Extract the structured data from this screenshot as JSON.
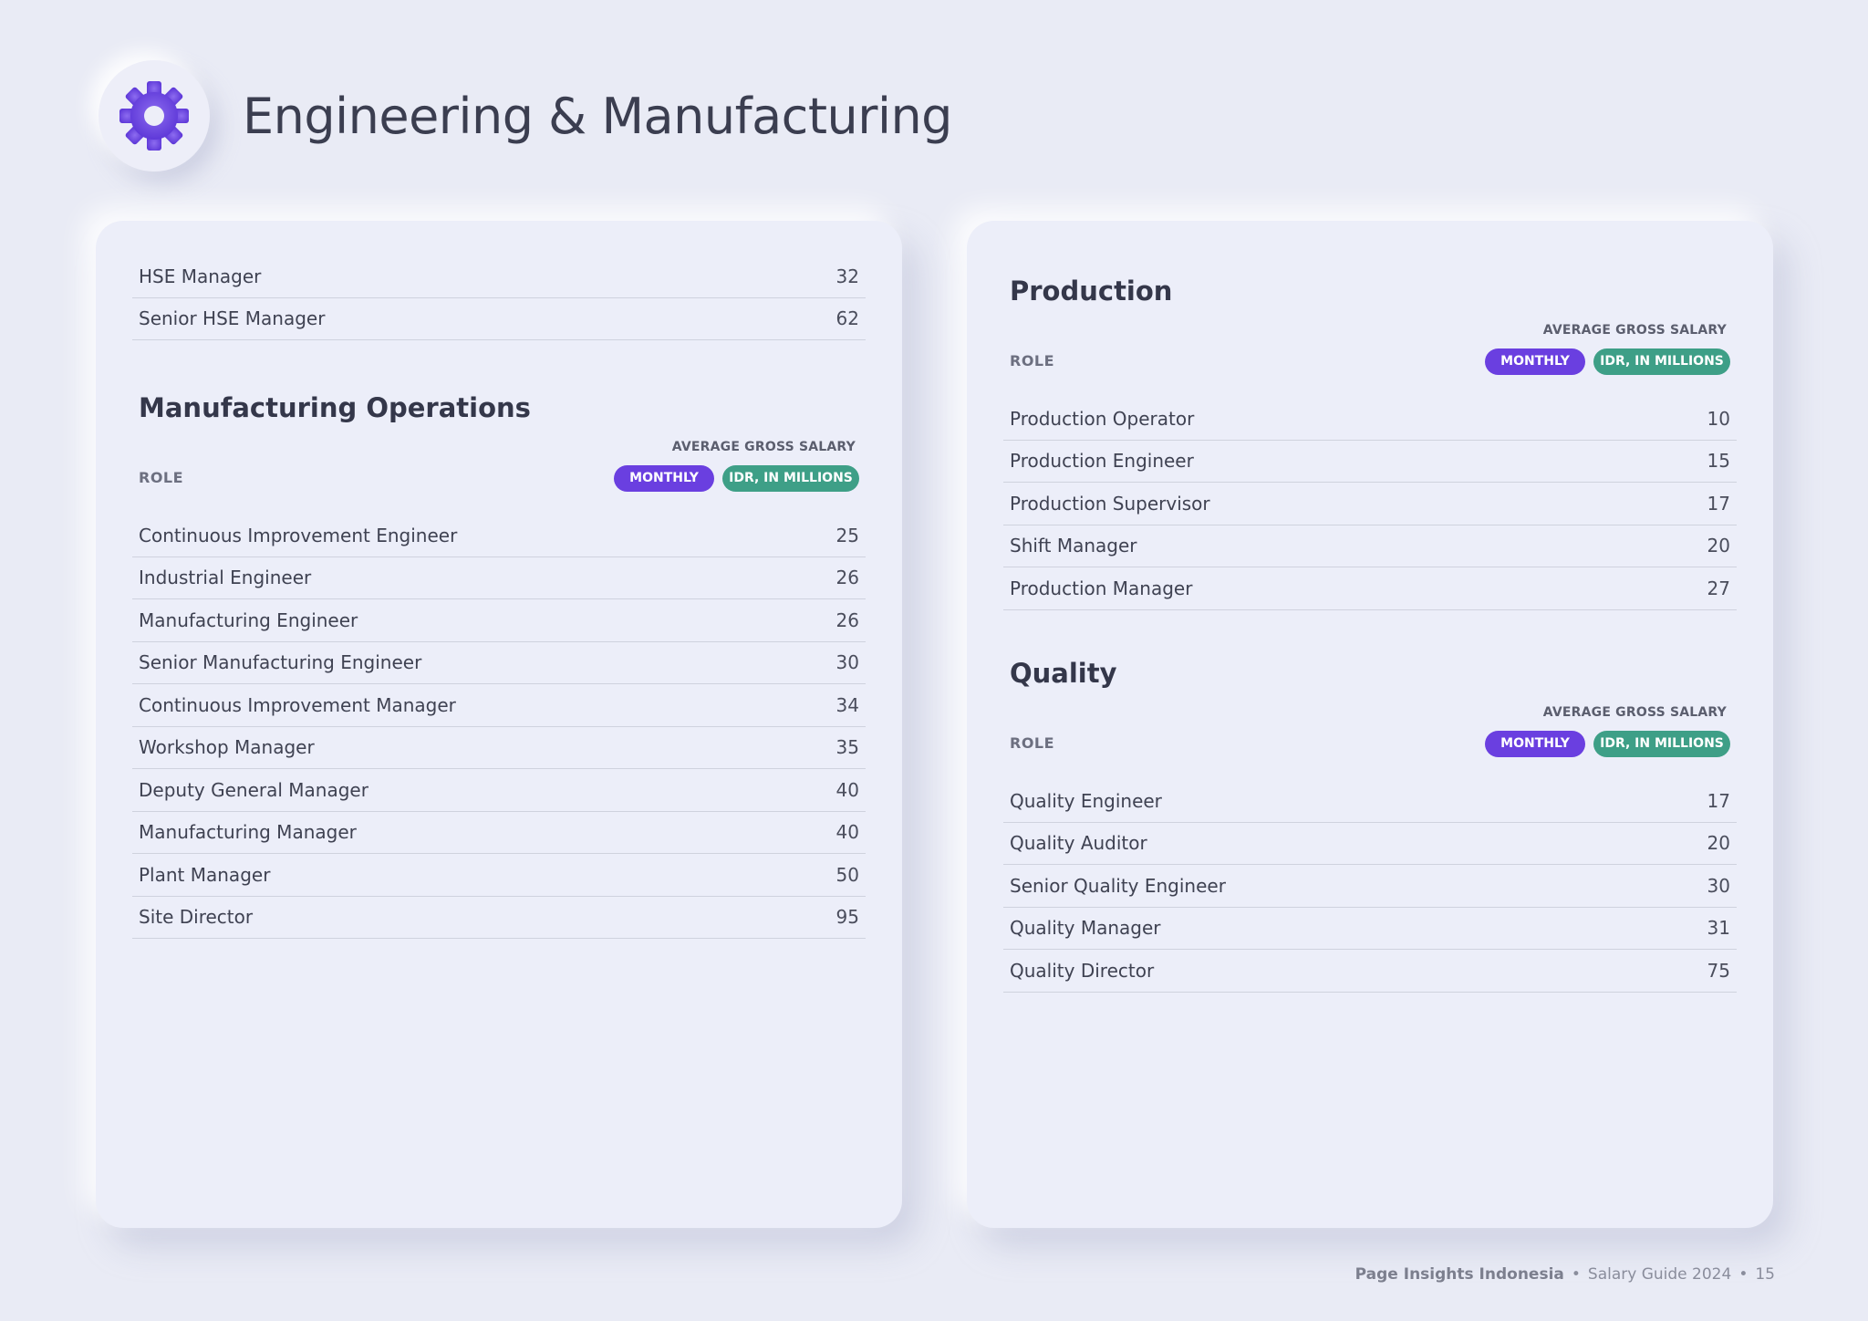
{
  "page": {
    "title": "Engineering & Manufacturing",
    "icon": "gear-icon"
  },
  "colors": {
    "accent_purple": "#6a3fe0",
    "accent_green": "#3e9f87",
    "background": "#e9ebf5"
  },
  "hse": {
    "rows": [
      {
        "role": "HSE Manager",
        "value": "32"
      },
      {
        "role": "Senior HSE Manager",
        "value": "62"
      }
    ]
  },
  "manufacturing": {
    "title": "Manufacturing Operations",
    "role_label": "ROLE",
    "salary_label": "AVERAGE GROSS SALARY",
    "badge_monthly": "MONTHLY",
    "badge_idr": "IDR, IN MILLIONS",
    "rows": [
      {
        "role": "Continuous Improvement Engineer",
        "value": "25"
      },
      {
        "role": "Industrial Engineer",
        "value": "26"
      },
      {
        "role": "Manufacturing Engineer",
        "value": "26"
      },
      {
        "role": "Senior Manufacturing Engineer",
        "value": "30"
      },
      {
        "role": "Continuous Improvement Manager",
        "value": "34"
      },
      {
        "role": "Workshop Manager",
        "value": "35"
      },
      {
        "role": "Deputy General Manager",
        "value": "40"
      },
      {
        "role": "Manufacturing Manager",
        "value": "40"
      },
      {
        "role": "Plant Manager",
        "value": "50"
      },
      {
        "role": "Site Director",
        "value": "95"
      }
    ]
  },
  "production": {
    "title": "Production",
    "role_label": "ROLE",
    "salary_label": "AVERAGE GROSS SALARY",
    "badge_monthly": "MONTHLY",
    "badge_idr": "IDR, IN MILLIONS",
    "rows": [
      {
        "role": "Production Operator",
        "value": "10"
      },
      {
        "role": "Production Engineer",
        "value": "15"
      },
      {
        "role": "Production Supervisor",
        "value": "17"
      },
      {
        "role": "Shift Manager",
        "value": "20"
      },
      {
        "role": "Production Manager",
        "value": "27"
      }
    ]
  },
  "quality": {
    "title": "Quality",
    "role_label": "ROLE",
    "salary_label": "AVERAGE GROSS SALARY",
    "badge_monthly": "MONTHLY",
    "badge_idr": "IDR, IN MILLIONS",
    "rows": [
      {
        "role": "Quality Engineer",
        "value": "17"
      },
      {
        "role": "Quality Auditor",
        "value": "20"
      },
      {
        "role": "Senior Quality Engineer",
        "value": "30"
      },
      {
        "role": "Quality Manager",
        "value": "31"
      },
      {
        "role": "Quality Director",
        "value": "75"
      }
    ]
  },
  "footer": {
    "brand": "Page Insights Indonesia",
    "guide": "Salary Guide 2024",
    "page_number": "15",
    "separator": "•"
  }
}
